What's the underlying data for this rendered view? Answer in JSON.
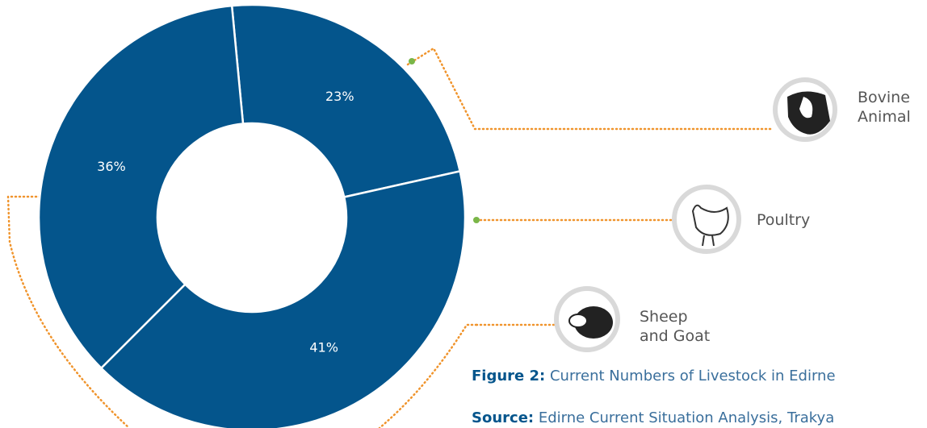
{
  "chart_data": {
    "type": "donut",
    "categories": [
      "Bovine Animal",
      "Poultry",
      "Sheep and Goat"
    ],
    "values": [
      23,
      41,
      36
    ],
    "value_labels": [
      "23%",
      "41%",
      "36%"
    ],
    "color": "#04558c",
    "caption": {
      "label": "Figure 2:",
      "text": "Current Numbers of Livestock in Edirne"
    },
    "source": {
      "label": "Source:",
      "text": "Edirne Current Situation Analysis, Trakya"
    }
  }
}
